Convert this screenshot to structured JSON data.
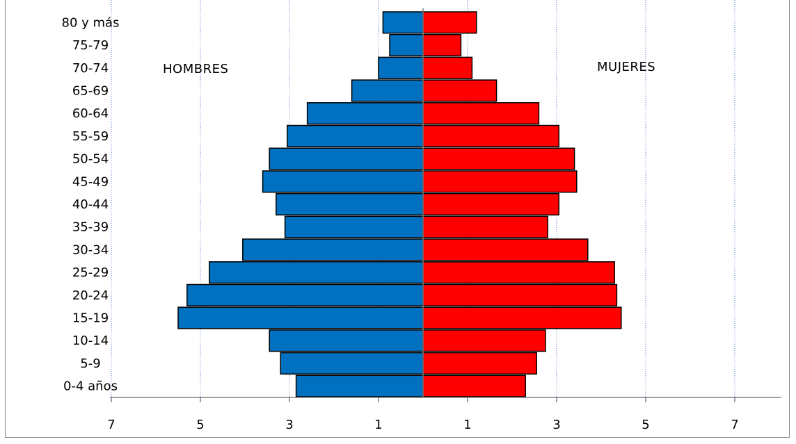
{
  "chart_data": {
    "type": "bar",
    "orientation": "horizontal",
    "layout": "population-pyramid",
    "categories": [
      "80 y más",
      "75-79",
      "70-74",
      "65-69",
      "60-64",
      "55-59",
      "50-54",
      "45-49",
      "40-44",
      "35-39",
      "30-34",
      "25-29",
      "20-24",
      "15-19",
      "10-14",
      "5-9",
      "0-4 años"
    ],
    "series": [
      {
        "name": "HOMBRES",
        "side": "left",
        "color": "#0070C0",
        "values": [
          0.9,
          0.75,
          1.0,
          1.6,
          2.6,
          3.05,
          3.45,
          3.6,
          3.3,
          3.1,
          4.05,
          4.8,
          5.3,
          5.5,
          3.45,
          3.2,
          2.85
        ]
      },
      {
        "name": "MUJERES",
        "side": "right",
        "color": "#FF0000",
        "values": [
          1.2,
          0.85,
          1.1,
          1.65,
          2.6,
          3.05,
          3.4,
          3.45,
          3.05,
          2.8,
          3.7,
          4.3,
          4.35,
          4.45,
          2.75,
          2.55,
          2.3
        ]
      }
    ],
    "xlim": [
      -8.5,
      8.5
    ],
    "x_ticks": [
      -7,
      -5,
      -3,
      -1,
      1,
      3,
      5,
      7
    ],
    "x_tick_labels": [
      "7",
      "5",
      "3",
      "1",
      "1",
      "3",
      "5",
      "7"
    ],
    "grid": {
      "vertical": true,
      "style": "dotted",
      "color": "#8EA9DB"
    },
    "legend": "none"
  }
}
